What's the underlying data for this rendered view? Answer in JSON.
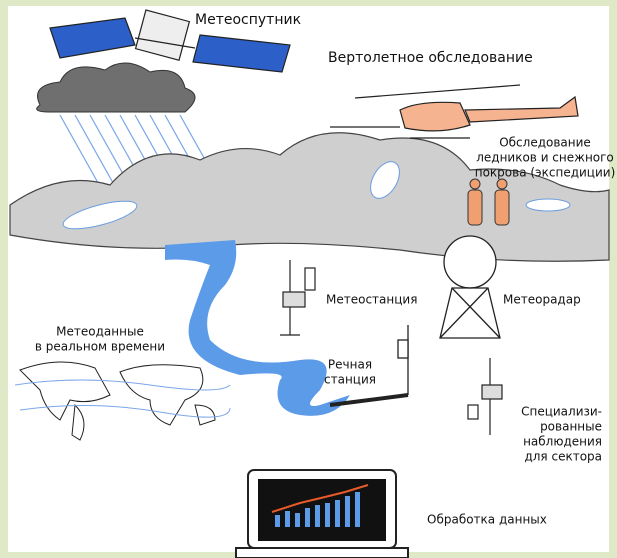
{
  "nodes": [
    {
      "lines": [
        "Метеоспутник"
      ]
    },
    {
      "lines": [
        "Вертолетное обследование"
      ]
    },
    {
      "lines": [
        "Обследование",
        "ледников и снежного",
        "покрова (экспедиции)"
      ]
    },
    {
      "lines": [
        "Метеоданные",
        "в реальном времени"
      ]
    },
    {
      "lines": [
        "Метеостанция"
      ]
    },
    {
      "lines": [
        "Метеорадар"
      ]
    },
    {
      "lines": [
        "Речная",
        "станция"
      ]
    },
    {
      "lines": [
        "Специализи-",
        "рованные",
        "наблюдения",
        "для сектора"
      ]
    },
    {
      "lines": [
        "Обработка данных"
      ]
    }
  ]
}
